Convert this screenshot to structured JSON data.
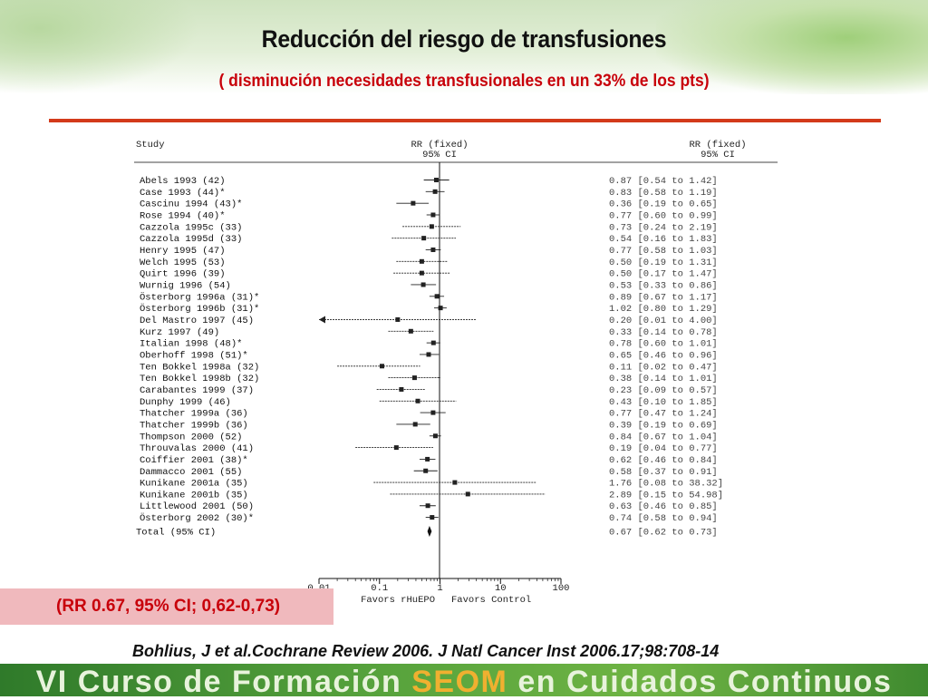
{
  "slide": {
    "title": "Reducción del riesgo de transfusiones",
    "subtitle": "( disminución necesidades transfusionales en un 33% de los pts)",
    "summary": "(RR 0.67, 95% CI; 0,62-0,73)",
    "citation": "Bohlius, J et al.Cochrane Review 2006. J Natl Cancer Inst 2006.17;98:708-14",
    "footer_pre": "VI Curso de Formación ",
    "footer_highlight": "SEOM",
    "footer_post": " en Cuidados Continuos",
    "colors": {
      "title_red": "#c8000a",
      "rule": "#d33a1a",
      "footer_green": "#4f9a36",
      "footer_highlight": "#f0b030"
    }
  },
  "chart_data": {
    "type": "forest",
    "study_header": "Study",
    "rr_header_1": "RR (fixed)",
    "rr_header_2": "95% CI",
    "xlabel_left": "Favors rHuEPO",
    "xlabel_right": "Favors Control",
    "x_scale": "log",
    "xlim": [
      0.01,
      100
    ],
    "ticks": [
      "0.01",
      "0.1",
      "1",
      "10",
      "100"
    ],
    "studies": [
      {
        "label": "Abels 1993 (42)",
        "rr": 0.87,
        "lo": 0.54,
        "hi": 1.42,
        "ci_text": "0.87 [0.54 to 1.42]"
      },
      {
        "label": "Case 1993 (44)*",
        "rr": 0.83,
        "lo": 0.58,
        "hi": 1.19,
        "ci_text": "0.83 [0.58 to 1.19]"
      },
      {
        "label": "Cascinu 1994 (43)*",
        "rr": 0.36,
        "lo": 0.19,
        "hi": 0.65,
        "ci_text": "0.36 [0.19 to 0.65]"
      },
      {
        "label": "Rose 1994 (40)*",
        "rr": 0.77,
        "lo": 0.6,
        "hi": 0.99,
        "ci_text": "0.77 [0.60 to 0.99]"
      },
      {
        "label": "Cazzola 1995c (33)",
        "rr": 0.73,
        "lo": 0.24,
        "hi": 2.19,
        "ci_text": "0.73 [0.24 to 2.19]"
      },
      {
        "label": "Cazzola 1995d (33)",
        "rr": 0.54,
        "lo": 0.16,
        "hi": 1.83,
        "ci_text": "0.54 [0.16 to 1.83]"
      },
      {
        "label": "Henry 1995 (47)",
        "rr": 0.77,
        "lo": 0.58,
        "hi": 1.03,
        "ci_text": "0.77 [0.58 to 1.03]"
      },
      {
        "label": "Welch 1995 (53)",
        "rr": 0.5,
        "lo": 0.19,
        "hi": 1.31,
        "ci_text": "0.50 [0.19 to 1.31]"
      },
      {
        "label": "Quirt 1996 (39)",
        "rr": 0.5,
        "lo": 0.17,
        "hi": 1.47,
        "ci_text": "0.50 [0.17 to 1.47]"
      },
      {
        "label": "Wurnig 1996 (54)",
        "rr": 0.53,
        "lo": 0.33,
        "hi": 0.86,
        "ci_text": "0.53 [0.33 to 0.86]"
      },
      {
        "label": "Österborg 1996a (31)*",
        "rr": 0.89,
        "lo": 0.67,
        "hi": 1.17,
        "ci_text": "0.89 [0.67 to 1.17]"
      },
      {
        "label": "Österborg 1996b (31)*",
        "rr": 1.02,
        "lo": 0.8,
        "hi": 1.29,
        "ci_text": "1.02 [0.80 to 1.29]"
      },
      {
        "label": "Del Mastro 1997 (45)",
        "rr": 0.2,
        "lo": 0.01,
        "hi": 4.0,
        "ci_text": "0.20 [0.01 to 4.00]"
      },
      {
        "label": "Kurz 1997 (49)",
        "rr": 0.33,
        "lo": 0.14,
        "hi": 0.78,
        "ci_text": "0.33 [0.14 to 0.78]"
      },
      {
        "label": "Italian 1998 (48)*",
        "rr": 0.78,
        "lo": 0.6,
        "hi": 1.01,
        "ci_text": "0.78 [0.60 to 1.01]"
      },
      {
        "label": "Oberhoff 1998 (51)*",
        "rr": 0.65,
        "lo": 0.46,
        "hi": 0.96,
        "ci_text": "0.65 [0.46 to 0.96]"
      },
      {
        "label": "Ten Bokkel 1998a (32)",
        "rr": 0.11,
        "lo": 0.02,
        "hi": 0.47,
        "ci_text": "0.11 [0.02 to 0.47]"
      },
      {
        "label": "Ten Bokkel 1998b  (32)",
        "rr": 0.38,
        "lo": 0.14,
        "hi": 1.01,
        "ci_text": "0.38 [0.14 to 1.01]"
      },
      {
        "label": "Carabantes 1999 (37)",
        "rr": 0.23,
        "lo": 0.09,
        "hi": 0.57,
        "ci_text": "0.23 [0.09 to 0.57]"
      },
      {
        "label": "Dunphy 1999 (46)",
        "rr": 0.43,
        "lo": 0.1,
        "hi": 1.85,
        "ci_text": "0.43 [0.10 to 1.85]"
      },
      {
        "label": "Thatcher 1999a (36)",
        "rr": 0.77,
        "lo": 0.47,
        "hi": 1.24,
        "ci_text": "0.77 [0.47 to 1.24]"
      },
      {
        "label": "Thatcher 1999b (36)",
        "rr": 0.39,
        "lo": 0.19,
        "hi": 0.69,
        "ci_text": "0.39 [0.19 to 0.69]"
      },
      {
        "label": "Thompson 2000 (52)",
        "rr": 0.84,
        "lo": 0.67,
        "hi": 1.04,
        "ci_text": "0.84 [0.67 to 1.04]"
      },
      {
        "label": "Throuvalas 2000 (41)",
        "rr": 0.19,
        "lo": 0.04,
        "hi": 0.77,
        "ci_text": "0.19 [0.04 to 0.77]"
      },
      {
        "label": "Coiffier 2001 (38)*",
        "rr": 0.62,
        "lo": 0.46,
        "hi": 0.84,
        "ci_text": "0.62 [0.46 to 0.84]"
      },
      {
        "label": "Dammacco 2001 (55)",
        "rr": 0.58,
        "lo": 0.37,
        "hi": 0.91,
        "ci_text": "0.58 [0.37 to 0.91]"
      },
      {
        "label": "Kunikane 2001a (35)",
        "rr": 1.76,
        "lo": 0.08,
        "hi": 38.32,
        "ci_text": "1.76 [0.08 to 38.32]"
      },
      {
        "label": "Kunikane 2001b (35)",
        "rr": 2.89,
        "lo": 0.15,
        "hi": 54.98,
        "ci_text": "2.89 [0.15 to 54.98]"
      },
      {
        "label": "Littlewood 2001 (50)",
        "rr": 0.63,
        "lo": 0.46,
        "hi": 0.85,
        "ci_text": "0.63 [0.46 to 0.85]"
      },
      {
        "label": "Österborg 2002 (30)*",
        "rr": 0.74,
        "lo": 0.58,
        "hi": 0.94,
        "ci_text": "0.74 [0.58 to 0.94]"
      }
    ],
    "total": {
      "label": "Total (95% CI)",
      "rr": 0.67,
      "lo": 0.62,
      "hi": 0.73,
      "ci_text": "0.67 [0.62 to 0.73]"
    }
  }
}
